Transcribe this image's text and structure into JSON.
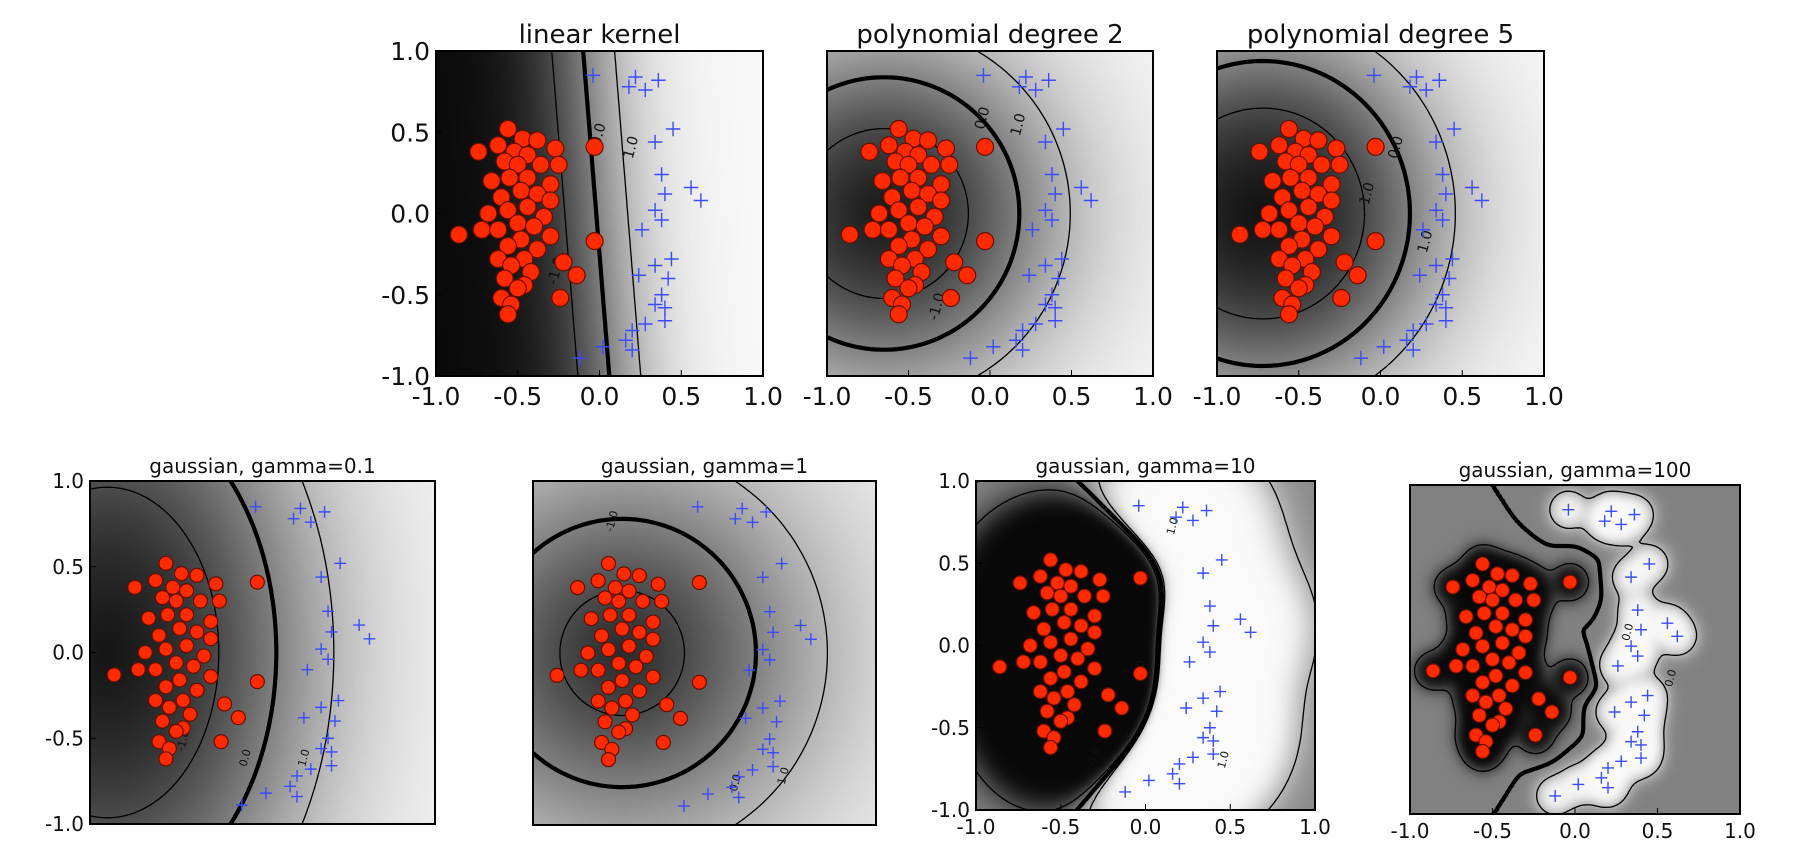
{
  "chart_data": [
    {
      "type": "scatter",
      "title": "linear kernel",
      "kernel": "linear",
      "xlim": [
        -1.0,
        1.0
      ],
      "ylim": [
        -1.0,
        1.0
      ],
      "xticks": [
        "-1.0",
        "-0.5",
        "0.0",
        "0.5",
        "1.0"
      ],
      "yticks": [
        "1.0",
        "0.5",
        "0.0",
        "-0.5",
        "-1.0"
      ],
      "contour_labels": [
        "0.0",
        "1.0",
        "-1.0"
      ]
    },
    {
      "type": "scatter",
      "title": "polynomial degree 2",
      "kernel": "poly2",
      "xlim": [
        -1.0,
        1.0
      ],
      "ylim": [
        -1.0,
        1.0
      ],
      "xticks": [
        "-1.0",
        "-0.5",
        "0.0",
        "0.5",
        "1.0"
      ],
      "yticks": [],
      "contour_labels": [
        "0.0",
        "1.0",
        "-1.0"
      ]
    },
    {
      "type": "scatter",
      "title": "polynomial degree 5",
      "kernel": "poly5",
      "xlim": [
        -1.0,
        1.0
      ],
      "ylim": [
        -1.0,
        1.0
      ],
      "xticks": [
        "-1.0",
        "-0.5",
        "0.0",
        "0.5",
        "1.0"
      ],
      "yticks": [],
      "contour_labels": [
        "0.0",
        "-1.0",
        "1.0"
      ]
    },
    {
      "type": "scatter",
      "title": "gaussian, gamma=0.1",
      "kernel": "gauss0.1",
      "xlim": [
        -1.0,
        1.0
      ],
      "ylim": [
        -1.0,
        1.0
      ],
      "xticks": [],
      "yticks": [
        "1.0",
        "0.5",
        "0.0",
        "-0.5",
        "-1.0"
      ],
      "contour_labels": [
        "0.0",
        "1.0",
        "-1.0"
      ]
    },
    {
      "type": "scatter",
      "title": "gaussian, gamma=1",
      "kernel": "gauss1",
      "xlim": [
        -1.0,
        1.0
      ],
      "ylim": [
        -1.0,
        1.0
      ],
      "xticks": [],
      "yticks": [],
      "contour_labels": [
        "-1.0",
        "0.0",
        "1.0"
      ]
    },
    {
      "type": "scatter",
      "title": "gaussian, gamma=10",
      "kernel": "gauss10",
      "xlim": [
        -1.0,
        1.0
      ],
      "ylim": [
        -1.0,
        1.0
      ],
      "xticks": [
        "-1.0",
        "-0.5",
        "0.0",
        "0.5",
        "1.0"
      ],
      "yticks": [
        "1.0",
        "0.5",
        "0.0",
        "-0.5",
        "-1.0"
      ],
      "contour_labels": [
        "1.0",
        "-1.0",
        "0.0",
        "1.0"
      ]
    },
    {
      "type": "scatter",
      "title": "gaussian, gamma=100",
      "kernel": "gauss100",
      "xlim": [
        -1.0,
        1.0
      ],
      "ylim": [
        -1.0,
        1.0
      ],
      "xticks": [
        "-1.0",
        "-0.5",
        "0.0",
        "0.5",
        "1.0"
      ],
      "yticks": [],
      "contour_labels": [
        "0.0",
        "0.0"
      ]
    }
  ],
  "points": {
    "class_a_color": "#ff2a00",
    "class_b_color": "#3b4bff",
    "class_a": [
      [
        -0.56,
        0.52
      ],
      [
        -0.47,
        0.46
      ],
      [
        -0.38,
        0.45
      ],
      [
        -0.74,
        0.38
      ],
      [
        -0.62,
        0.42
      ],
      [
        -0.52,
        0.38
      ],
      [
        -0.44,
        0.36
      ],
      [
        -0.27,
        0.4
      ],
      [
        -0.03,
        0.41
      ],
      [
        -0.58,
        0.32
      ],
      [
        -0.5,
        0.3
      ],
      [
        -0.36,
        0.3
      ],
      [
        -0.25,
        0.3
      ],
      [
        -0.55,
        0.22
      ],
      [
        -0.44,
        0.22
      ],
      [
        -0.3,
        0.18
      ],
      [
        -0.66,
        0.2
      ],
      [
        -0.48,
        0.14
      ],
      [
        -0.38,
        0.12
      ],
      [
        -0.6,
        0.1
      ],
      [
        -0.3,
        0.08
      ],
      [
        -0.44,
        0.04
      ],
      [
        -0.56,
        0.02
      ],
      [
        -0.68,
        0.0
      ],
      [
        -0.34,
        -0.02
      ],
      [
        -0.5,
        -0.06
      ],
      [
        -0.72,
        -0.1
      ],
      [
        -0.62,
        -0.1
      ],
      [
        -0.4,
        -0.08
      ],
      [
        -0.86,
        -0.13
      ],
      [
        -0.48,
        -0.16
      ],
      [
        -0.3,
        -0.14
      ],
      [
        -0.56,
        -0.2
      ],
      [
        -0.38,
        -0.22
      ],
      [
        -0.46,
        -0.28
      ],
      [
        -0.62,
        -0.28
      ],
      [
        -0.54,
        -0.32
      ],
      [
        -0.42,
        -0.36
      ],
      [
        -0.22,
        -0.3
      ],
      [
        -0.58,
        -0.4
      ],
      [
        -0.46,
        -0.44
      ],
      [
        -0.6,
        -0.52
      ],
      [
        -0.54,
        -0.56
      ],
      [
        -0.56,
        -0.62
      ],
      [
        -0.24,
        -0.52
      ],
      [
        -0.14,
        -0.38
      ],
      [
        -0.03,
        -0.17
      ],
      [
        -0.5,
        -0.46
      ]
    ],
    "class_b": [
      [
        -0.04,
        0.85
      ],
      [
        0.22,
        0.84
      ],
      [
        0.36,
        0.82
      ],
      [
        0.18,
        0.78
      ],
      [
        0.28,
        0.76
      ],
      [
        0.45,
        0.52
      ],
      [
        0.34,
        0.44
      ],
      [
        0.38,
        0.24
      ],
      [
        0.56,
        0.16
      ],
      [
        0.4,
        0.12
      ],
      [
        0.62,
        0.08
      ],
      [
        0.34,
        0.02
      ],
      [
        0.38,
        -0.04
      ],
      [
        0.26,
        -0.1
      ],
      [
        0.44,
        -0.28
      ],
      [
        0.34,
        -0.32
      ],
      [
        0.24,
        -0.38
      ],
      [
        0.42,
        -0.4
      ],
      [
        0.38,
        -0.5
      ],
      [
        0.34,
        -0.56
      ],
      [
        0.4,
        -0.58
      ],
      [
        0.28,
        -0.68
      ],
      [
        0.4,
        -0.66
      ],
      [
        0.2,
        -0.72
      ],
      [
        0.16,
        -0.78
      ],
      [
        0.2,
        -0.84
      ],
      [
        0.02,
        -0.82
      ],
      [
        -0.12,
        -0.89
      ]
    ]
  }
}
